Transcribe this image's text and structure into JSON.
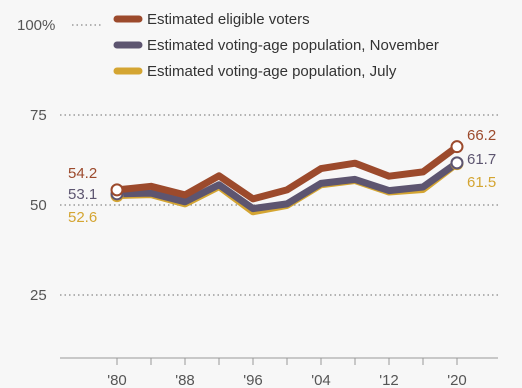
{
  "chart_data": {
    "type": "line",
    "x": [
      1980,
      1984,
      1988,
      1992,
      1996,
      2000,
      2004,
      2008,
      2012,
      2016,
      2020
    ],
    "series": [
      {
        "name": "Estimated eligible voters",
        "color": "#9c4a2c",
        "values": [
          54.2,
          55.2,
          52.8,
          58.1,
          51.7,
          54.2,
          60.1,
          61.6,
          58.0,
          59.2,
          66.2
        ],
        "end_label": "66.2",
        "start_label": "54.2"
      },
      {
        "name": "Estimated voting-age population, November",
        "color": "#5d5570",
        "values": [
          53.1,
          53.3,
          50.9,
          55.6,
          49.0,
          50.3,
          56.0,
          57.1,
          54.0,
          55.0,
          61.7
        ],
        "end_label": "61.7",
        "start_label": "53.1"
      },
      {
        "name": "Estimated voting-age population, July",
        "color": "#d4a532",
        "values": [
          52.6,
          52.9,
          50.3,
          55.1,
          48.1,
          49.9,
          55.6,
          56.8,
          53.6,
          54.3,
          61.5
        ],
        "end_label": "61.5",
        "start_label": "52.6"
      }
    ],
    "y_ticks": [
      {
        "value": 100,
        "label": "100%"
      },
      {
        "value": 75,
        "label": "75"
      },
      {
        "value": 50,
        "label": "50"
      },
      {
        "value": 25,
        "label": "25"
      }
    ],
    "x_ticks": [
      {
        "value": 1980,
        "label": "'80"
      },
      {
        "value": 1988,
        "label": "'88"
      },
      {
        "value": 1996,
        "label": "'96"
      },
      {
        "value": 2004,
        "label": "'04"
      },
      {
        "value": 2012,
        "label": "'12"
      },
      {
        "value": 2020,
        "label": "'20"
      }
    ],
    "ylim": [
      0,
      100
    ],
    "grid": "dotted horizontal",
    "legend": "top"
  }
}
